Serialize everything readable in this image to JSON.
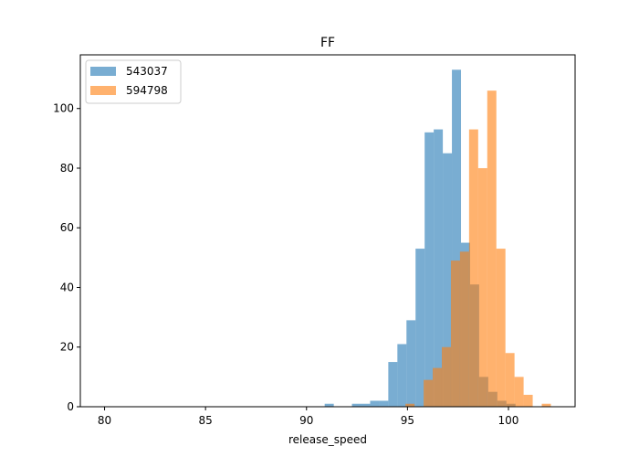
{
  "chart_data": {
    "type": "histogram",
    "title": "FF",
    "xlabel": "release_speed",
    "ylabel": "",
    "xlim": [
      78.8,
      103.3
    ],
    "ylim": [
      0,
      118
    ],
    "xticks": [
      80,
      85,
      90,
      95,
      100
    ],
    "yticks": [
      0,
      20,
      40,
      60,
      80,
      100
    ],
    "grid": false,
    "legend_position": "top-left",
    "opacity": 0.6,
    "series": [
      {
        "name": "543037",
        "color": "#1f77b4",
        "bins": [
          {
            "x0": 90.9,
            "x1": 91.35,
            "count": 1
          },
          {
            "x0": 92.25,
            "x1": 92.7,
            "count": 1
          },
          {
            "x0": 92.7,
            "x1": 93.15,
            "count": 1
          },
          {
            "x0": 93.15,
            "x1": 93.6,
            "count": 2
          },
          {
            "x0": 93.6,
            "x1": 94.05,
            "count": 2
          },
          {
            "x0": 94.05,
            "x1": 94.5,
            "count": 15
          },
          {
            "x0": 94.5,
            "x1": 94.95,
            "count": 21
          },
          {
            "x0": 94.95,
            "x1": 95.4,
            "count": 29
          },
          {
            "x0": 95.4,
            "x1": 95.85,
            "count": 53
          },
          {
            "x0": 95.85,
            "x1": 96.3,
            "count": 92
          },
          {
            "x0": 96.3,
            "x1": 96.75,
            "count": 93
          },
          {
            "x0": 96.75,
            "x1": 97.2,
            "count": 85
          },
          {
            "x0": 97.2,
            "x1": 97.65,
            "count": 113
          },
          {
            "x0": 97.65,
            "x1": 98.1,
            "count": 55
          },
          {
            "x0": 98.1,
            "x1": 98.55,
            "count": 41
          },
          {
            "x0": 98.55,
            "x1": 99.0,
            "count": 10
          },
          {
            "x0": 99.0,
            "x1": 99.45,
            "count": 5
          },
          {
            "x0": 99.45,
            "x1": 99.9,
            "count": 2
          },
          {
            "x0": 99.9,
            "x1": 100.35,
            "count": 1
          }
        ]
      },
      {
        "name": "594798",
        "color": "#ff7f0e",
        "bins": [
          {
            "x0": 94.9,
            "x1": 95.35,
            "count": 1
          },
          {
            "x0": 95.35,
            "x1": 95.8,
            "count": 0
          },
          {
            "x0": 95.8,
            "x1": 96.25,
            "count": 9
          },
          {
            "x0": 96.25,
            "x1": 96.7,
            "count": 13
          },
          {
            "x0": 96.7,
            "x1": 97.15,
            "count": 20
          },
          {
            "x0": 97.15,
            "x1": 97.6,
            "count": 49
          },
          {
            "x0": 97.6,
            "x1": 98.05,
            "count": 52
          },
          {
            "x0": 98.05,
            "x1": 98.5,
            "count": 93
          },
          {
            "x0": 98.5,
            "x1": 98.95,
            "count": 80
          },
          {
            "x0": 98.95,
            "x1": 99.4,
            "count": 106
          },
          {
            "x0": 99.4,
            "x1": 99.85,
            "count": 53
          },
          {
            "x0": 99.85,
            "x1": 100.3,
            "count": 18
          },
          {
            "x0": 100.3,
            "x1": 100.75,
            "count": 10
          },
          {
            "x0": 100.75,
            "x1": 101.2,
            "count": 4
          },
          {
            "x0": 101.2,
            "x1": 101.65,
            "count": 0
          },
          {
            "x0": 101.65,
            "x1": 102.1,
            "count": 1
          }
        ]
      }
    ]
  }
}
